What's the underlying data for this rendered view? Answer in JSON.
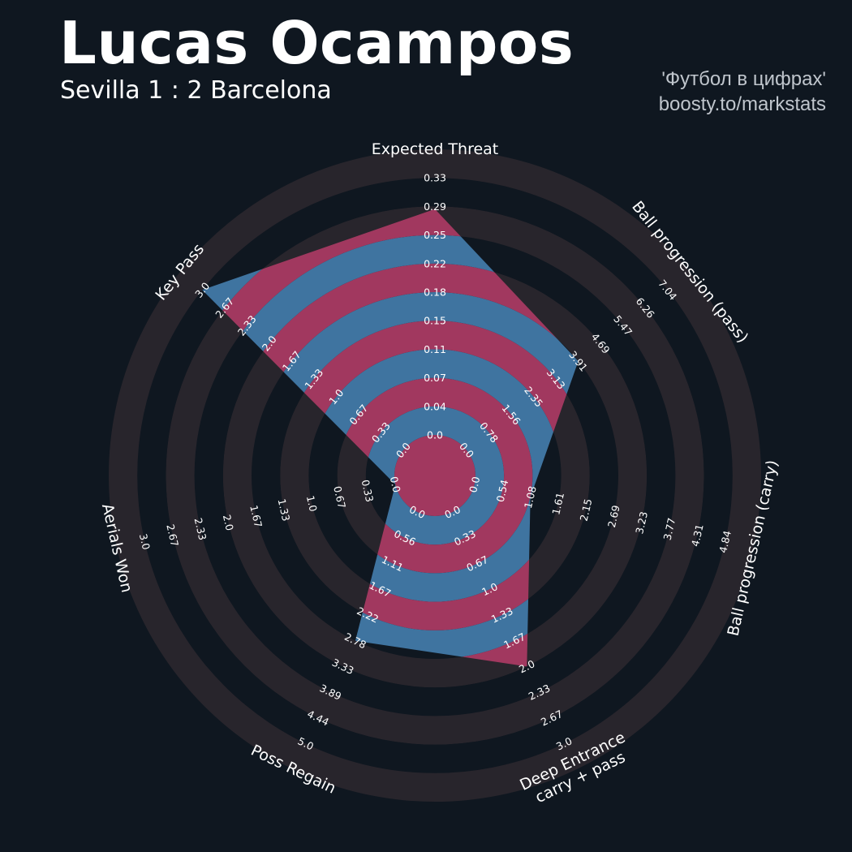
{
  "header": {
    "title": "Lucas Ocampos",
    "subtitle": "Sevilla 1 : 2 Barcelona"
  },
  "credit": {
    "line1": "'Футбол в цифрах'",
    "line2": "boosty.to/markstats"
  },
  "colors": {
    "background": "#0f1720",
    "ring_dark": "#28252c",
    "ring_light": "#0f1720",
    "fill_primary": "#3f74a0",
    "fill_alternate": "#a1385f",
    "text": "#ffffff",
    "credit_text": "#bfc5cc"
  },
  "chart_data": {
    "type": "radar",
    "parameters": [
      {
        "label": "Expected Threat",
        "ticks": [
          "0.0",
          "0.04",
          "0.07",
          "0.11",
          "0.15",
          "0.18",
          "0.22",
          "0.25",
          "0.29",
          "0.33"
        ],
        "min": 0,
        "max": 0.33,
        "value": 0.29
      },
      {
        "label": "Ball progression (pass)",
        "ticks": [
          "0.0",
          "0.78",
          "1.56",
          "2.35",
          "3.13",
          "3.91",
          "4.69",
          "5.47",
          "6.26",
          "7.04"
        ],
        "min": 0,
        "max": 7.04,
        "value": 3.91
      },
      {
        "label": "Ball progression (carry)",
        "ticks": [
          "0.0",
          "0.54",
          "1.08",
          "1.61",
          "2.15",
          "2.69",
          "3.23",
          "3.77",
          "4.31",
          "4.84"
        ],
        "min": 0,
        "max": 4.84,
        "value": 1.08
      },
      {
        "label": "Deep Entrance\ncarry + pass",
        "ticks": [
          "0.0",
          "0.33",
          "0.67",
          "1.0",
          "1.33",
          "1.67",
          "2.0",
          "2.33",
          "2.67",
          "3.0"
        ],
        "min": 0,
        "max": 3.0,
        "value": 2.0
      },
      {
        "label": "Poss Regain",
        "ticks": [
          "0.0",
          "0.56",
          "1.11",
          "1.67",
          "2.22",
          "2.78",
          "3.33",
          "3.89",
          "4.44",
          "5.0"
        ],
        "min": 0,
        "max": 5.0,
        "value": 2.78
      },
      {
        "label": "Aerials Won",
        "ticks": [
          "0.0",
          "0.33",
          "0.67",
          "1.0",
          "1.33",
          "1.67",
          "2.0",
          "2.33",
          "2.67",
          "3.0"
        ],
        "min": 0,
        "max": 3.0,
        "value": 0.0
      },
      {
        "label": "Key Pass",
        "ticks": [
          "0.0",
          "0.33",
          "0.67",
          "1.0",
          "1.33",
          "1.67",
          "2.0",
          "2.33",
          "2.67",
          "3.0"
        ],
        "min": 0,
        "max": 3.0,
        "value": 3.0
      }
    ]
  }
}
